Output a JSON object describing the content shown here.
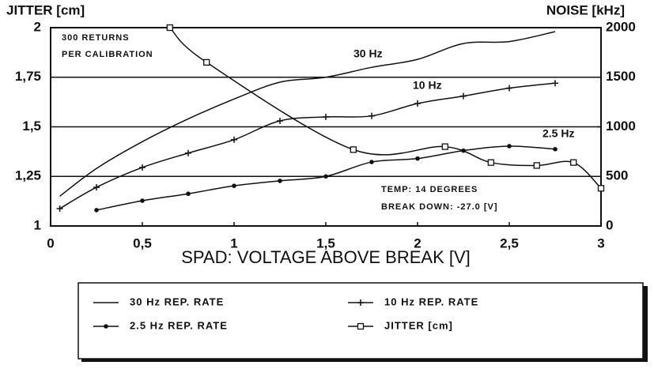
{
  "chart_data": {
    "type": "line",
    "x_label": "SPAD: VOLTAGE ABOVE BREAK [V]",
    "y_label": "JITTER [cm]",
    "y2_label": "NOISE [kHz]",
    "xlim": [
      0,
      3
    ],
    "xticks": [
      0,
      {
        "value": 0.5,
        "label": "0,5"
      },
      1,
      {
        "value": 1.5,
        "label": "1,5"
      },
      2,
      {
        "value": 2.5,
        "label": "2,5"
      },
      3
    ],
    "ylim": [
      1,
      2
    ],
    "yticks": [
      1,
      {
        "value": 1.25,
        "label": "1,25"
      },
      {
        "value": 1.5,
        "label": "1,5"
      },
      {
        "value": 1.75,
        "label": "1,75"
      },
      2
    ],
    "y2lim": [
      0,
      2000
    ],
    "y2ticks": [
      0,
      500,
      1000,
      1500,
      2000
    ],
    "grid": true,
    "annotations": [
      "300 RETURNS",
      "PER CALIBRATION",
      "30 Hz",
      "10 Hz",
      "2.5 Hz",
      "TEMP: 14 DEGREES",
      "BREAK DOWN: -27.0 [V]"
    ],
    "series": [
      {
        "name": "30 Hz REP. RATE",
        "color": "#111111",
        "axis": "y2",
        "marker": "none",
        "x": [
          0.05,
          0.25,
          0.5,
          0.75,
          1,
          1.25,
          1.5,
          1.75,
          2,
          2.25,
          2.5,
          2.75
        ],
        "values": [
          300,
          580,
          850,
          1080,
          1280,
          1450,
          1500,
          1600,
          1680,
          1840,
          1860,
          1960
        ]
      },
      {
        "name": "10 Hz REP. RATE",
        "color": "#111111",
        "axis": "y2",
        "marker": "plus",
        "x": [
          0.05,
          0.25,
          0.5,
          0.75,
          1,
          1.25,
          1.5,
          1.75,
          2,
          2.25,
          2.5,
          2.75
        ],
        "values": [
          175,
          390,
          590,
          735,
          870,
          1060,
          1100,
          1110,
          1235,
          1310,
          1390,
          1440
        ]
      },
      {
        "name": "2.5 Hz REP. RATE",
        "color": "#111111",
        "axis": "y2",
        "marker": "dot",
        "x": [
          0.25,
          0.5,
          0.75,
          1,
          1.25,
          1.5,
          1.75,
          2,
          2.25,
          2.5,
          2.75
        ],
        "values": [
          160,
          255,
          325,
          405,
          455,
          500,
          645,
          680,
          760,
          805,
          775
        ]
      },
      {
        "name": "JITTER [cm]",
        "color": "#111111",
        "axis": "y",
        "marker": "square",
        "x": [
          0.65,
          0.85,
          1.65,
          2.15,
          2.4,
          2.65,
          2.85,
          3
        ],
        "values": [
          2.0,
          1.825,
          1.385,
          1.4,
          1.32,
          1.305,
          1.32,
          1.19
        ]
      }
    ]
  }
}
